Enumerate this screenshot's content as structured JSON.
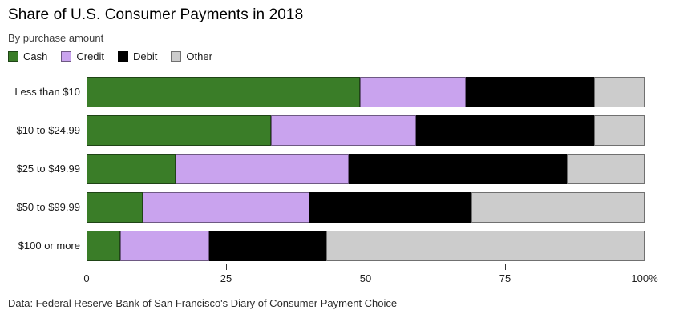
{
  "header": {
    "title": "Share of U.S. Consumer Payments in 2018",
    "subtitle": "By purchase amount"
  },
  "caption": "Data: Federal Reserve Bank of San Francisco's Diary of Consumer Payment Choice",
  "colors": {
    "cash": "#3a7d28",
    "credit": "#c9a3ee",
    "debit": "#000000",
    "other": "#cccccc",
    "axis": "#333333",
    "background": "#ffffff"
  },
  "chart_data": {
    "type": "bar",
    "orientation": "horizontal",
    "stacked": true,
    "title": "Share of U.S. Consumer Payments in 2018",
    "subtitle": "By purchase amount",
    "categories": [
      "Less than $10",
      "$10 to $24.99",
      "$25 to $49.99",
      "$50 to $99.99",
      "$100 or more"
    ],
    "series": [
      {
        "name": "Cash",
        "color": "#3a7d28",
        "values": [
          49,
          33,
          16,
          10,
          6
        ]
      },
      {
        "name": "Credit",
        "color": "#c9a3ee",
        "values": [
          19,
          26,
          31,
          30,
          16
        ]
      },
      {
        "name": "Debit",
        "color": "#000000",
        "values": [
          23,
          32,
          39,
          29,
          21
        ]
      },
      {
        "name": "Other",
        "color": "#cccccc",
        "values": [
          9,
          9,
          14,
          31,
          57
        ]
      }
    ],
    "xlabel": "",
    "ylabel": "",
    "xlim": [
      0,
      100
    ],
    "ticks": [
      {
        "value": 0,
        "label": "0"
      },
      {
        "value": 25,
        "label": "25"
      },
      {
        "value": 50,
        "label": "50"
      },
      {
        "value": 75,
        "label": "75"
      },
      {
        "value": 100,
        "label": "100%"
      }
    ],
    "legend_position": "top",
    "grid": false
  }
}
